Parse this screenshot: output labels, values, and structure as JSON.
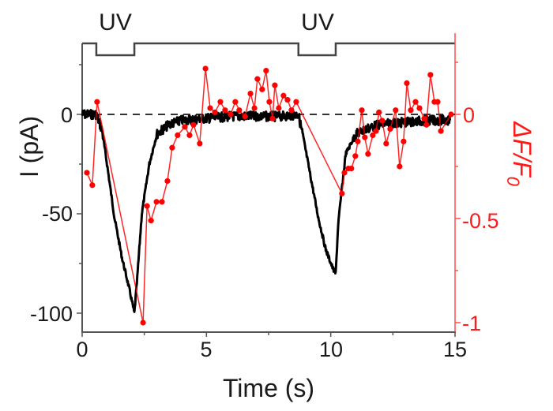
{
  "chart_data": {
    "type": "line",
    "title": "",
    "xlabel": "Time (s)",
    "ylabel": "I (pA)",
    "y2label": "ΔF/F0",
    "xlim": [
      0,
      15
    ],
    "ylim": [
      -110,
      30
    ],
    "y2lim": [
      -1.02,
      0.43
    ],
    "x_ticks": [
      0,
      5,
      10,
      15
    ],
    "y_ticks": [
      0,
      -50,
      -100
    ],
    "y2_ticks": [
      0,
      -0.5,
      -1
    ],
    "y2_tick_labels": [
      "0",
      "-0.5",
      "-1"
    ],
    "grid": false,
    "legend": null,
    "zero_reference": {
      "style": "dashed",
      "y": 0
    },
    "stimulus": {
      "label": "UV",
      "pulses": [
        {
          "label": "UV",
          "start": 0.57,
          "end": 2.1
        },
        {
          "label": "UV",
          "start": 8.7,
          "end": 10.2
        }
      ]
    },
    "series": [
      {
        "name": "I (pA)",
        "axis": "left",
        "color": "#000000",
        "style": "noisy trace",
        "x": [
          0,
          0.3,
          0.57,
          0.8,
          1.0,
          1.3,
          1.6,
          1.9,
          2.1,
          2.2,
          2.4,
          2.7,
          3.0,
          3.5,
          4.0,
          5.0,
          6.0,
          7.0,
          8.0,
          8.7,
          8.9,
          9.2,
          9.5,
          9.8,
          10.1,
          10.2,
          10.3,
          10.6,
          11.0,
          11.5,
          12.0,
          13.0,
          14.0,
          14.8
        ],
        "y": [
          0,
          0,
          0,
          -8,
          -25,
          -52,
          -72,
          -88,
          -100,
          -85,
          -50,
          -25,
          -10,
          -5,
          -3,
          -2,
          -1,
          -1,
          -1,
          0,
          -12,
          -32,
          -52,
          -68,
          -78,
          -80,
          -55,
          -20,
          -10,
          -7,
          -5,
          -4,
          -3,
          -3
        ]
      },
      {
        "name": "ΔF/F0",
        "axis": "right",
        "color": "#ff0000",
        "style": "line+markers",
        "x": [
          0.19,
          0.41,
          0.6,
          2.45,
          2.61,
          2.77,
          2.99,
          3.21,
          3.43,
          3.62,
          3.84,
          4.13,
          4.32,
          4.48,
          4.73,
          4.96,
          5.15,
          5.34,
          5.56,
          5.75,
          5.97,
          6.16,
          6.32,
          6.55,
          6.77,
          6.93,
          7.05,
          7.24,
          7.4,
          7.53,
          7.66,
          7.75,
          7.91,
          8.1,
          8.26,
          8.42,
          8.61,
          10.45,
          10.55,
          10.71,
          10.83,
          10.99,
          11.09,
          11.25,
          11.37,
          11.5,
          11.69,
          11.82,
          11.94,
          12.07,
          12.23,
          12.39,
          12.61,
          12.77,
          12.93,
          13.06,
          13.22,
          13.41,
          13.57,
          13.76,
          13.85,
          14.01,
          14.17,
          14.3,
          14.43,
          14.84
        ],
        "y": [
          -0.28,
          -0.34,
          0.06,
          -1.0,
          -0.44,
          -0.51,
          -0.42,
          -0.42,
          -0.32,
          -0.16,
          -0.1,
          -0.06,
          -0.1,
          -0.05,
          -0.14,
          0.22,
          0.03,
          0.01,
          0.06,
          0.02,
          0.0,
          0.06,
          0.02,
          -0.01,
          0.1,
          0.03,
          0.17,
          0.12,
          0.21,
          0.06,
          -0.02,
          0.14,
          0.03,
          0.09,
          0.07,
          0.02,
          0.06,
          -0.38,
          -0.28,
          -0.26,
          -0.26,
          -0.2,
          -0.13,
          0.02,
          -0.11,
          -0.19,
          -0.1,
          -0.08,
          0.01,
          -0.03,
          -0.14,
          -0.07,
          0.02,
          -0.25,
          -0.13,
          0.15,
          0.02,
          0.06,
          0.03,
          -0.02,
          -0.05,
          0.19,
          0.06,
          0.06,
          -0.08,
          0.0
        ]
      }
    ]
  },
  "labels": {
    "uv1": "UV",
    "uv2": "UV",
    "xlabel": "Time (s)",
    "ylabel": "I (pA)",
    "y2label_main": "ΔF/F",
    "y2label_sub": "0",
    "x_ticks": [
      "0",
      "5",
      "10",
      "15"
    ],
    "y_ticks": [
      "0",
      "-50",
      "-100"
    ],
    "y2_ticks": [
      "0",
      "-0.5",
      "-1"
    ]
  },
  "colors": {
    "current": "#000000",
    "fluorescence": "#ff0000",
    "axis_left": "#555555",
    "axis_right": "#ff4d4d"
  }
}
